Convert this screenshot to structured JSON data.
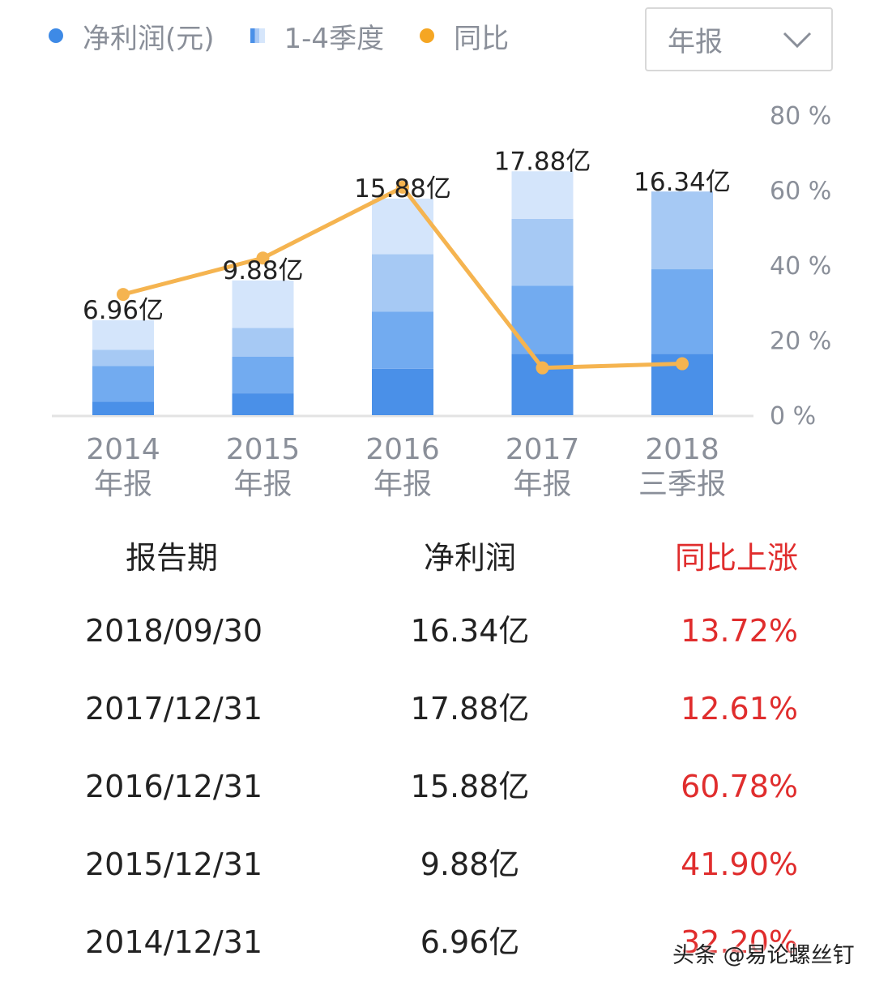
{
  "legend": {
    "net_profit": "净利润(元)",
    "quarters": "1-4季度",
    "yoy": "同比"
  },
  "period_select": {
    "value": "年报"
  },
  "colors": {
    "line": "#f5b450",
    "accent_blue": "#4a90e8",
    "negative_red": "#e02d2d"
  },
  "chart_data": {
    "type": "bar",
    "categories": [
      [
        "2014",
        "年报"
      ],
      [
        "2015",
        "年报"
      ],
      [
        "2016",
        "年报"
      ],
      [
        "2017",
        "年报"
      ],
      [
        "2018",
        "三季报"
      ]
    ],
    "bar_labels": [
      "6.96亿",
      "9.88亿",
      "15.88亿",
      "17.88亿",
      "16.34亿"
    ],
    "values": [
      6.96,
      9.88,
      15.88,
      17.88,
      16.34
    ],
    "quarter_series": [
      {
        "name": "Q1",
        "values": [
          1.0,
          1.6,
          3.4,
          4.5,
          4.5
        ]
      },
      {
        "name": "Q2",
        "values": [
          2.6,
          2.7,
          4.2,
          5.0,
          6.2
        ]
      },
      {
        "name": "Q3",
        "values": [
          1.2,
          2.1,
          4.2,
          4.9,
          5.7
        ]
      },
      {
        "name": "Q4",
        "values": [
          2.16,
          3.48,
          4.08,
          3.48,
          0
        ]
      }
    ],
    "quarter_colors": [
      "#4a90e8",
      "#72abf0",
      "#a6c9f4",
      "#d4e5fb"
    ],
    "bar_ylim": [
      0,
      22
    ],
    "yoy_values": [
      32.2,
      41.9,
      60.78,
      12.61,
      13.72
    ],
    "right_axis_ticks": [
      "0 %",
      "20 %",
      "40 %",
      "60 %",
      "80 %"
    ],
    "right_ylim": [
      0,
      80
    ],
    "grid": false
  },
  "table": {
    "headers": [
      "报告期",
      "净利润",
      "同比上涨"
    ],
    "rows": [
      [
        "2018/09/30",
        "16.34亿",
        "13.72%"
      ],
      [
        "2017/12/31",
        "17.88亿",
        "12.61%"
      ],
      [
        "2016/12/31",
        "15.88亿",
        "60.78%"
      ],
      [
        "2015/12/31",
        "9.88亿",
        "41.90%"
      ],
      [
        "2014/12/31",
        "6.96亿",
        "32.20%"
      ]
    ]
  },
  "watermark": "头条 @易论螺丝钉"
}
